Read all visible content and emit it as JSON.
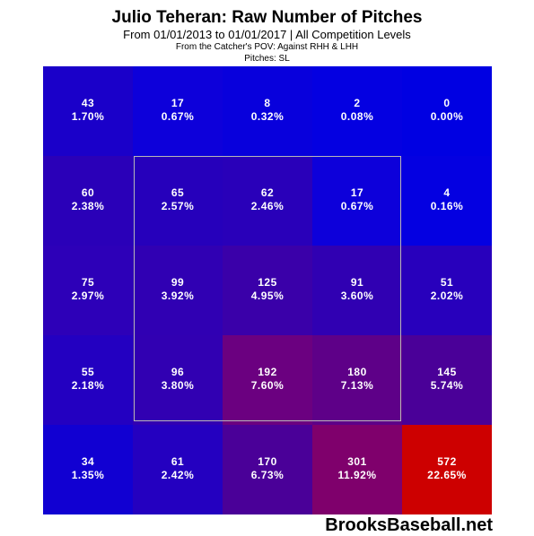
{
  "header": {
    "title": "Julio Teheran: Raw Number of Pitches",
    "subtitle": "From 01/01/2013 to 01/01/2017 | All Competition Levels",
    "pov": "From the Catcher's POV:  Against RHH & LHH",
    "pitches": "Pitches:  SL"
  },
  "chart_data": {
    "type": "heatmap",
    "rows": 5,
    "cols": 5,
    "counts": [
      [
        43,
        17,
        8,
        2,
        0
      ],
      [
        60,
        65,
        62,
        17,
        4
      ],
      [
        75,
        99,
        125,
        91,
        51
      ],
      [
        55,
        96,
        192,
        180,
        145
      ],
      [
        34,
        61,
        170,
        301,
        572
      ]
    ],
    "labels": [
      [
        "43",
        "17",
        "8",
        "2",
        "0"
      ],
      [
        "60",
        "65",
        "62",
        "17",
        "4"
      ],
      [
        "75",
        "99",
        "125",
        "91",
        "51"
      ],
      [
        "55",
        "96",
        "192",
        "180",
        "145"
      ],
      [
        "34",
        "61",
        "170",
        "301",
        "572"
      ]
    ],
    "percentages": [
      [
        "1.70%",
        "0.67%",
        "0.32%",
        "0.08%",
        "0.00%"
      ],
      [
        "2.38%",
        "2.57%",
        "2.46%",
        "0.67%",
        "0.16%"
      ],
      [
        "2.97%",
        "3.92%",
        "4.95%",
        "3.60%",
        "2.02%"
      ],
      [
        "2.18%",
        "3.80%",
        "7.60%",
        "7.13%",
        "5.74%"
      ],
      [
        "1.35%",
        "2.42%",
        "6.73%",
        "11.92%",
        "22.65%"
      ]
    ],
    "colors": [
      [
        "#1a00c9",
        "#0d00da",
        "#0800dc",
        "#0400e1",
        "#0000e2"
      ],
      [
        "#2a00b8",
        "#2600bb",
        "#2900b9",
        "#0d00da",
        "#0400e1"
      ],
      [
        "#2d00b8",
        "#3000b3",
        "#3a00a9",
        "#3000b2",
        "#2800bc"
      ],
      [
        "#2300c1",
        "#3100b2",
        "#6b0080",
        "#5e0088",
        "#4a0098"
      ],
      [
        "#1100d2",
        "#2400c0",
        "#4a0098",
        "#7f006c",
        "#cd0000"
      ]
    ],
    "low_color": "#0000e2",
    "high_color": "#cd0000",
    "strike_zone": "middle 3x3 cells"
  },
  "footer": {
    "brand": "BrooksBaseball.net"
  }
}
